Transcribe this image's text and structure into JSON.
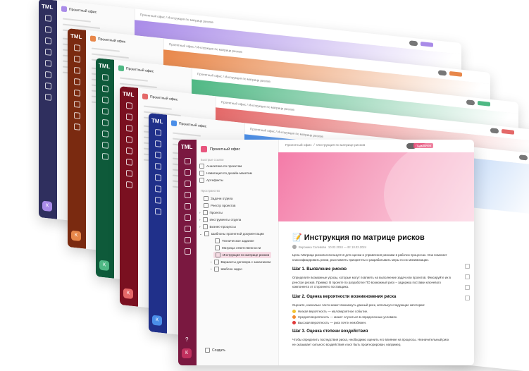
{
  "app_logo": "TML",
  "workspace_name": "Проектный офис",
  "breadcrumb": {
    "root": "Проектный офис",
    "page": "Инструкция по матрице рисков"
  },
  "publish_label": "Подключен",
  "sidebar": {
    "quick_links_label": "Быстрые ссылки",
    "quick_links": [
      "Аналитика по проектам",
      "Навигация по дизайн-макетам",
      "Артефакты"
    ],
    "spaces_label": "Пространство",
    "items": [
      "Задачи отдела",
      "Реестр проектов",
      "Проекты",
      "Инструменты отдела",
      "Бизнес-процессы",
      "Шаблоны проектной документации",
      "Техническое задание",
      "Матрица ответственности",
      "Инструкция по матрице рисков",
      "Варианты договора с заказчиком",
      "Шаблон задач"
    ],
    "create_label": "Создать"
  },
  "rail": {
    "help": "?",
    "avatar": "К"
  },
  "document": {
    "title": "Инструкция по матрице рисков",
    "author": "Вероника Солевова",
    "date": "10.02.2024 — Вт 10.02.2024",
    "intro": "Цель: Матрица рисков используется для оценки и управления рисками в рабочих процессах. Она помогает классифицировать риски, расставлять приоритеты и разрабатывать меры по их минимизации.",
    "step1": "Шаг 1. Выявление рисков",
    "step1_text": "Определите возможные угрозы, которые могут повлиять на выполнение задач или проектов. Фиксируйте их в реестре рисков. Пример: В проекте по разработке ПО возможный риск – задержка поставки ключевого компонента от стороннего поставщика.",
    "step2": "Шаг 2. Оценка вероятности возникновения риска",
    "step2_text": "Оцените, насколько часто может возникнуть данный риск, используя следующие категории:",
    "levels": [
      "Низкая вероятность — маловероятное событие.",
      "Средняя вероятность — может случиться в определенных условиях.",
      "Высокая вероятность — риск почти неизбежен."
    ],
    "step3": "Шаг 3. Оценка степени воздействия",
    "step3_text": "Чтобы определить последствия риска, необходимо оценить его влияние на процессы. Незначительный риск не оказывает сильного воздействия и мог быть проигнорирован, например,"
  },
  "colors": {
    "back_themes": [
      "#2f2f5e",
      "#7a2a10",
      "#0e5a3a",
      "#7a1020",
      "#20308a",
      "#7a1840"
    ],
    "accents": [
      "#a98be8",
      "#e8874a",
      "#4fb884",
      "#e46868",
      "#4a8ee8",
      "#e8567e"
    ],
    "level_colors": [
      "#f2c230",
      "#f28a30",
      "#e03a3a"
    ]
  }
}
